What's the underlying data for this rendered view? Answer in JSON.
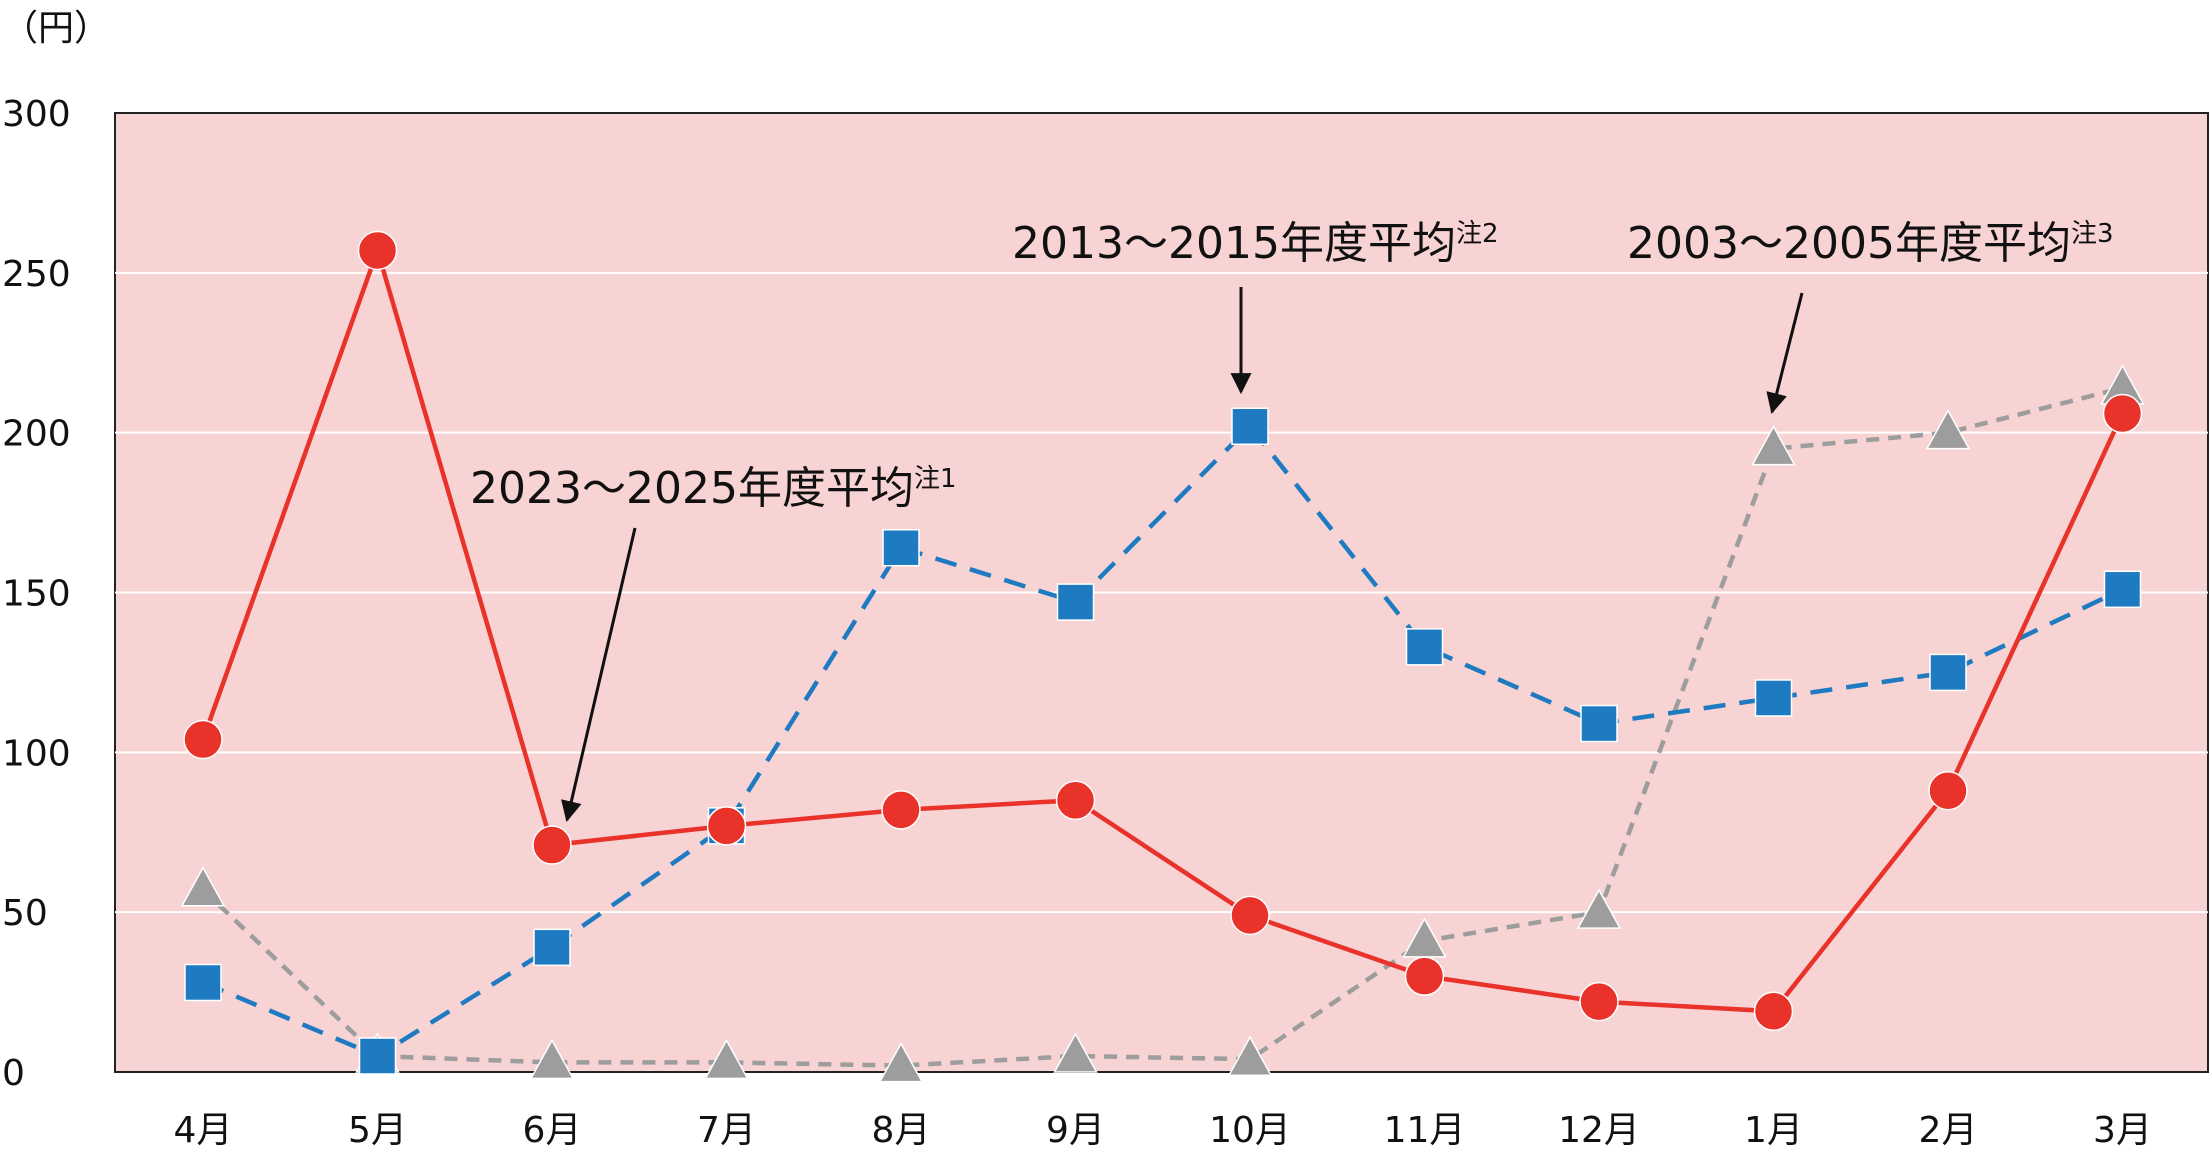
{
  "chart_data": {
    "type": "line",
    "ylabel": "（円）",
    "ylim": [
      0,
      300
    ],
    "y_ticks": [
      0,
      50,
      100,
      150,
      200,
      250,
      300
    ],
    "categories": [
      "4月",
      "5月",
      "6月",
      "7月",
      "8月",
      "9月",
      "10月",
      "11月",
      "12月",
      "1月",
      "2月",
      "3月"
    ],
    "background_color": "#f7d3d4",
    "grid": true,
    "series": [
      {
        "name": "2023～2025年度平均",
        "note": "注1",
        "color": "#e8322a",
        "line_style": "solid",
        "marker": "circle",
        "values": [
          104,
          257,
          71,
          77,
          82,
          85,
          49,
          30,
          22,
          19,
          88,
          206
        ]
      },
      {
        "name": "2013～2015年度平均",
        "note": "注2",
        "color": "#1f7bc1",
        "line_style": "dashed",
        "marker": "square",
        "values": [
          28,
          5,
          39,
          77,
          164,
          147,
          202,
          133,
          109,
          117,
          125,
          151
        ]
      },
      {
        "name": "2003～2005年度平均",
        "note": "注3",
        "color": "#9d9d9d",
        "line_style": "dotted-dash",
        "marker": "triangle",
        "values": [
          57,
          5,
          3,
          3,
          2,
          5,
          4,
          41,
          50,
          195,
          200,
          214
        ]
      }
    ]
  }
}
